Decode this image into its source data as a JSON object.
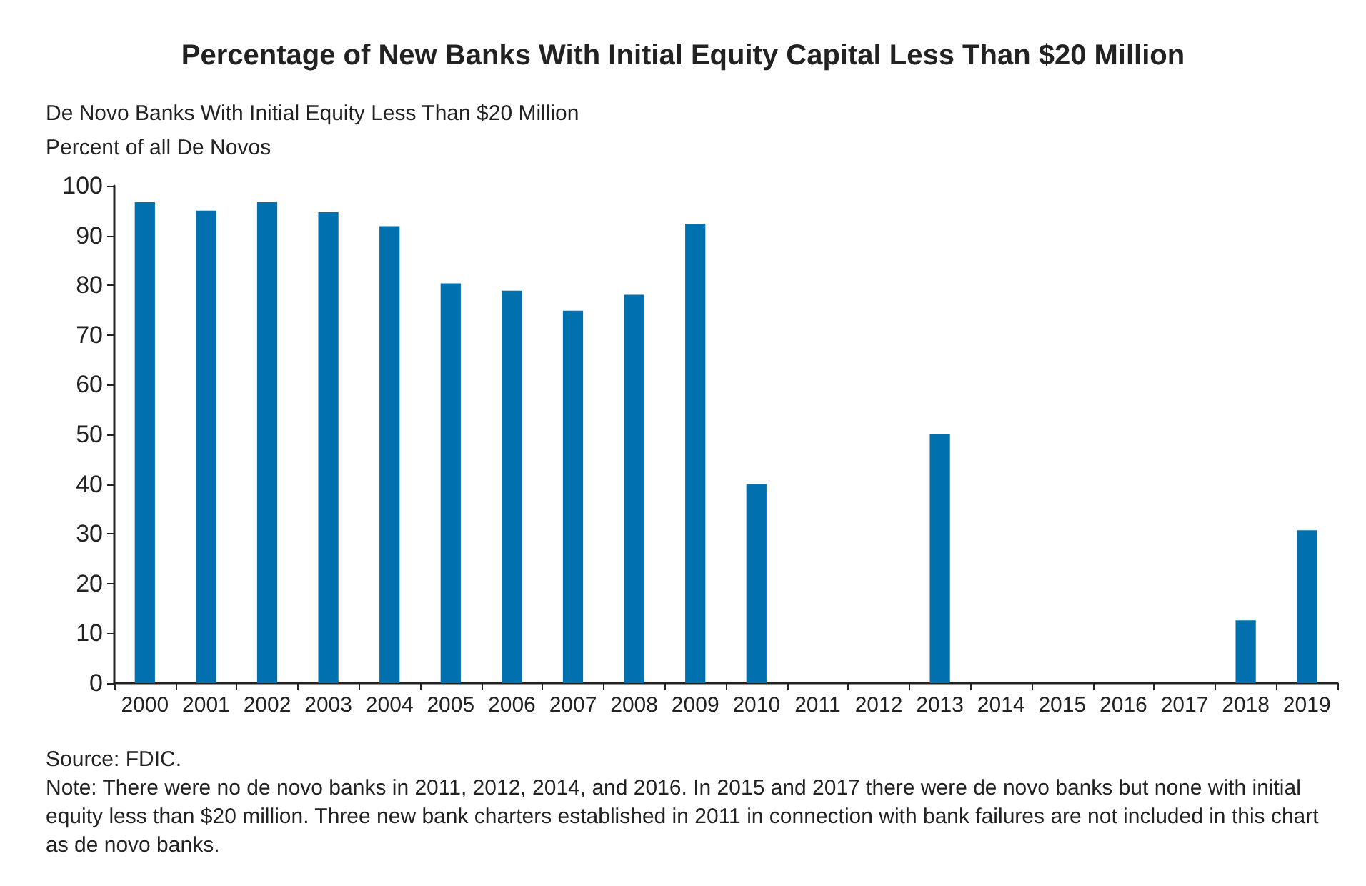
{
  "chart_data": {
    "type": "bar",
    "title": "Percentage of New Banks With Initial Equity Capital Less Than $20 Million",
    "subtitle": "De Novo Banks With Initial Equity Less Than $20 Million",
    "ylabel": "Percent of all De Novos",
    "categories": [
      "2000",
      "2001",
      "2002",
      "2003",
      "2004",
      "2005",
      "2006",
      "2007",
      "2008",
      "2009",
      "2010",
      "2011",
      "2012",
      "2013",
      "2014",
      "2015",
      "2016",
      "2017",
      "2018",
      "2019"
    ],
    "values": [
      96.7,
      95,
      96.7,
      94.7,
      91.9,
      80.4,
      78.9,
      74.9,
      78.1,
      92.4,
      40,
      null,
      null,
      50,
      null,
      0,
      null,
      0,
      12.6,
      30.7
    ],
    "color": "#0070ae",
    "ylim": [
      0,
      100
    ],
    "yticks": [
      0,
      10,
      20,
      30,
      40,
      50,
      60,
      70,
      80,
      90,
      100
    ],
    "grid": false,
    "annotations": [
      "Source: FDIC.",
      "Note: There were no de novo banks in 2011, 2012, 2014, and 2016. In 2015 and 2017 there were de novo banks but none with initial equity less than $20 million. Three new bank charters established in 2011 in connection with bank failures are not included in this chart as de novo banks."
    ]
  }
}
